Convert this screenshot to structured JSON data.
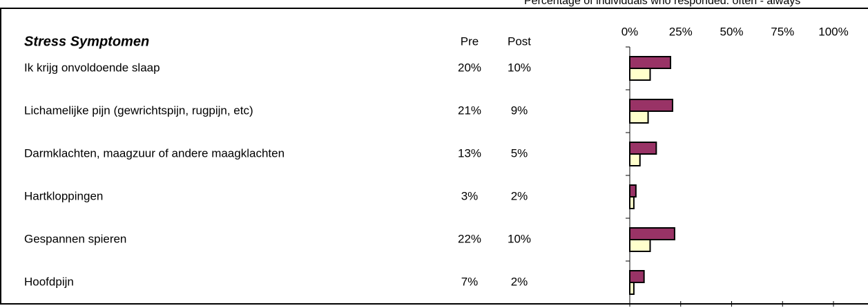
{
  "chart_data": {
    "type": "bar",
    "orientation": "horizontal",
    "note": "Percentage of individuals who responded: often - always",
    "title": "Stress Symptomen",
    "column_headers": [
      "Pre",
      "Post"
    ],
    "categories": [
      "Ik krijg onvoldoende slaap",
      "Lichamelijke pijn (gewrichtspijn, rugpijn, etc)",
      "Darmklachten, maagzuur of andere maagklachten",
      "Hartkloppingen",
      "Gespannen spieren",
      "Hoofdpijn"
    ],
    "series": [
      {
        "name": "Pre",
        "color": "#993366",
        "values": [
          20,
          21,
          13,
          3,
          22,
          7
        ],
        "value_labels": [
          "20%",
          "21%",
          "13%",
          "3%",
          "22%",
          "7%"
        ]
      },
      {
        "name": "Post",
        "color": "#ffffcc",
        "values": [
          10,
          9,
          5,
          2,
          10,
          2
        ],
        "value_labels": [
          "10%",
          "9%",
          "5%",
          "2%",
          "10%",
          "2%"
        ]
      }
    ],
    "xlim": [
      0,
      100
    ],
    "xticks": [
      {
        "value": 0,
        "label": "0%"
      },
      {
        "value": 25,
        "label": "25%"
      },
      {
        "value": 50,
        "label": "50%"
      },
      {
        "value": 75,
        "label": "75%"
      },
      {
        "value": 100,
        "label": "100%"
      }
    ]
  }
}
